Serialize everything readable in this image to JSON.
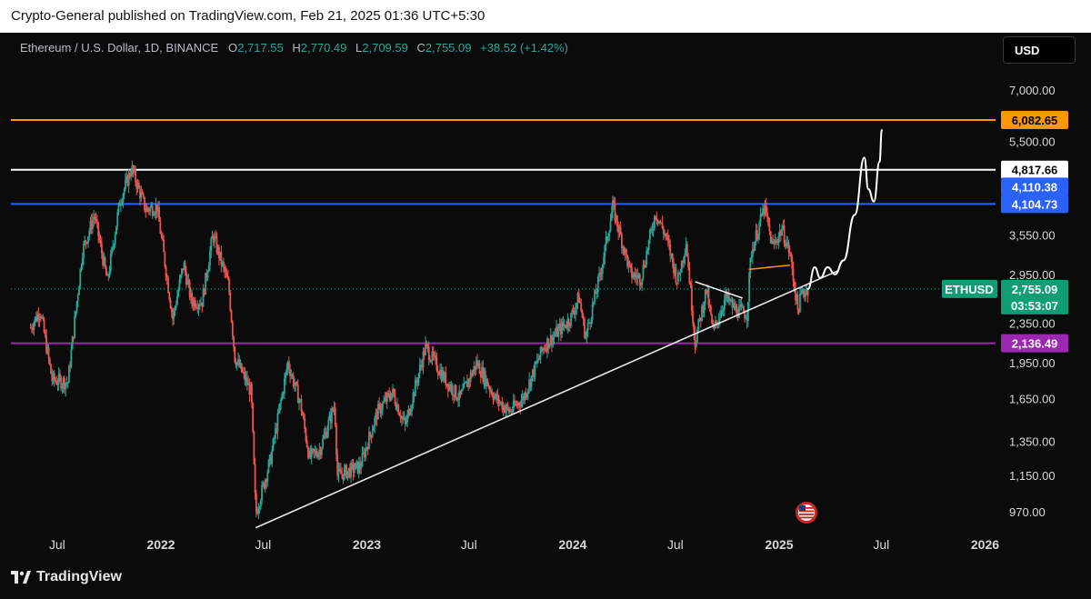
{
  "header": {
    "published_text": "Crypto-General published on TradingView.com, Feb 21, 2025 01:36 UTC+5:30"
  },
  "legend": {
    "symbol": "Ethereum / U.S. Dollar, 1D, BINANCE",
    "open_label": "O",
    "open": "2,717.55",
    "high_label": "H",
    "high": "2,770.49",
    "low_label": "L",
    "low": "2,709.59",
    "close_label": "C",
    "close": "2,755.09",
    "change": "+38.52 (+1.42%)"
  },
  "currency_button": "USD",
  "footer": {
    "brand": "TradingView"
  },
  "colors": {
    "background": "#0b0b0b",
    "up_candle": "#26a69a",
    "down_candle": "#ef5350",
    "orange_line": "#ff9800",
    "white_line": "#ffffff",
    "blue_line": "#2962ff",
    "purple_line": "#9c27b0",
    "price_badge": "#0f9d76"
  },
  "chart_data": {
    "type": "candlestick",
    "symbol": "ETHUSD",
    "scale": "log",
    "y_ticks": [
      "7,000.00",
      "5,500.00",
      "3,550.00",
      "2,950.00",
      "2,350.00",
      "1,950.00",
      "1,650.00",
      "1,350.00",
      "1,150.00",
      "970.00"
    ],
    "y_tick_values": [
      7000,
      5500,
      3550,
      2950,
      2350,
      1950,
      1650,
      1350,
      1150,
      970
    ],
    "x_ticks": [
      "Jul",
      "2022",
      "Jul",
      "2023",
      "Jul",
      "2024",
      "Jul",
      "2025",
      "Jul",
      "2026"
    ],
    "x_tick_dates": [
      "2021-07-01",
      "2022-01-01",
      "2022-07-01",
      "2023-01-01",
      "2023-07-01",
      "2024-01-01",
      "2024-07-01",
      "2025-01-01",
      "2025-07-01",
      "2026-01-01"
    ],
    "horizontal_levels": [
      {
        "label": "6,082.65",
        "value": 6082.65,
        "color": "#ff9800"
      },
      {
        "label": "4,817.66",
        "value": 4817.66,
        "color": "#ffffff"
      },
      {
        "label": "4,110.38",
        "value": 4110.38,
        "color": "#2962ff"
      },
      {
        "label": "4,104.73",
        "value": 4104.73,
        "color": "#2962ff"
      },
      {
        "label": "2,136.49",
        "value": 2136.49,
        "color": "#9c27b0"
      }
    ],
    "last_price": {
      "symbol_label": "ETHUSD",
      "price": "2,755.09",
      "value": 2755.09,
      "countdown": "03:53:07"
    },
    "trendline": [
      {
        "date": "2022-06-18",
        "value": 900
      },
      {
        "date": "2025-04-15",
        "value": 3000
      }
    ],
    "wedge_lines": [
      {
        "from": {
          "date": "2024-08-05",
          "value": 2850
        },
        "to": {
          "date": "2024-10-28",
          "value": 2640
        },
        "color": "#ffffff"
      },
      {
        "from": {
          "date": "2024-11-08",
          "value": 3020
        },
        "to": {
          "date": "2025-01-20",
          "value": 3080
        },
        "color": "#ff9800"
      }
    ],
    "projection": [
      {
        "date": "2025-02-21",
        "value": 2755
      },
      {
        "date": "2025-03-05",
        "value": 3050
      },
      {
        "date": "2025-03-15",
        "value": 2900
      },
      {
        "date": "2025-03-28",
        "value": 3050
      },
      {
        "date": "2025-04-10",
        "value": 2950
      },
      {
        "date": "2025-04-25",
        "value": 3150
      },
      {
        "date": "2025-05-15",
        "value": 3900
      },
      {
        "date": "2025-06-01",
        "value": 5100
      },
      {
        "date": "2025-06-08",
        "value": 4400
      },
      {
        "date": "2025-06-18",
        "value": 4150
      },
      {
        "date": "2025-06-28",
        "value": 5000
      },
      {
        "date": "2025-07-02",
        "value": 5800
      }
    ],
    "price_path": [
      {
        "date": "2021-05-15",
        "value": 2300
      },
      {
        "date": "2021-06-01",
        "value": 2500
      },
      {
        "date": "2021-06-22",
        "value": 1800
      },
      {
        "date": "2021-07-20",
        "value": 1780
      },
      {
        "date": "2021-08-15",
        "value": 3300
      },
      {
        "date": "2021-09-05",
        "value": 3900
      },
      {
        "date": "2021-09-28",
        "value": 2850
      },
      {
        "date": "2021-10-20",
        "value": 4150
      },
      {
        "date": "2021-11-10",
        "value": 4850
      },
      {
        "date": "2021-12-05",
        "value": 4000
      },
      {
        "date": "2021-12-25",
        "value": 4050
      },
      {
        "date": "2022-01-22",
        "value": 2400
      },
      {
        "date": "2022-02-10",
        "value": 3100
      },
      {
        "date": "2022-02-24",
        "value": 2600
      },
      {
        "date": "2022-03-15",
        "value": 2600
      },
      {
        "date": "2022-04-03",
        "value": 3550
      },
      {
        "date": "2022-05-01",
        "value": 2800
      },
      {
        "date": "2022-05-12",
        "value": 2000
      },
      {
        "date": "2022-06-10",
        "value": 1700
      },
      {
        "date": "2022-06-18",
        "value": 960
      },
      {
        "date": "2022-07-15",
        "value": 1250
      },
      {
        "date": "2022-08-14",
        "value": 1950
      },
      {
        "date": "2022-09-06",
        "value": 1600
      },
      {
        "date": "2022-09-21",
        "value": 1250
      },
      {
        "date": "2022-10-10",
        "value": 1300
      },
      {
        "date": "2022-11-05",
        "value": 1600
      },
      {
        "date": "2022-11-10",
        "value": 1150
      },
      {
        "date": "2022-12-20",
        "value": 1200
      },
      {
        "date": "2023-01-20",
        "value": 1550
      },
      {
        "date": "2023-02-15",
        "value": 1700
      },
      {
        "date": "2023-03-10",
        "value": 1450
      },
      {
        "date": "2023-04-15",
        "value": 2100
      },
      {
        "date": "2023-05-20",
        "value": 1800
      },
      {
        "date": "2023-06-15",
        "value": 1650
      },
      {
        "date": "2023-07-15",
        "value": 1950
      },
      {
        "date": "2023-08-17",
        "value": 1650
      },
      {
        "date": "2023-09-11",
        "value": 1550
      },
      {
        "date": "2023-10-05",
        "value": 1650
      },
      {
        "date": "2023-11-10",
        "value": 2100
      },
      {
        "date": "2023-12-28",
        "value": 2400
      },
      {
        "date": "2024-01-12",
        "value": 2650
      },
      {
        "date": "2024-01-24",
        "value": 2200
      },
      {
        "date": "2024-02-20",
        "value": 3000
      },
      {
        "date": "2024-03-12",
        "value": 4050
      },
      {
        "date": "2024-04-13",
        "value": 2950
      },
      {
        "date": "2024-05-01",
        "value": 2900
      },
      {
        "date": "2024-05-27",
        "value": 3950
      },
      {
        "date": "2024-06-15",
        "value": 3500
      },
      {
        "date": "2024-07-05",
        "value": 2850
      },
      {
        "date": "2024-07-20",
        "value": 3450
      },
      {
        "date": "2024-08-05",
        "value": 2150
      },
      {
        "date": "2024-08-25",
        "value": 2750
      },
      {
        "date": "2024-09-06",
        "value": 2250
      },
      {
        "date": "2024-09-28",
        "value": 2650
      },
      {
        "date": "2024-10-15",
        "value": 2500
      },
      {
        "date": "2024-11-05",
        "value": 2450
      },
      {
        "date": "2024-11-12",
        "value": 3250
      },
      {
        "date": "2024-12-06",
        "value": 4050
      },
      {
        "date": "2024-12-20",
        "value": 3350
      },
      {
        "date": "2025-01-06",
        "value": 3650
      },
      {
        "date": "2025-01-20",
        "value": 3250
      },
      {
        "date": "2025-02-03",
        "value": 2500
      },
      {
        "date": "2025-02-10",
        "value": 2700
      },
      {
        "date": "2025-02-21",
        "value": 2755
      }
    ]
  }
}
